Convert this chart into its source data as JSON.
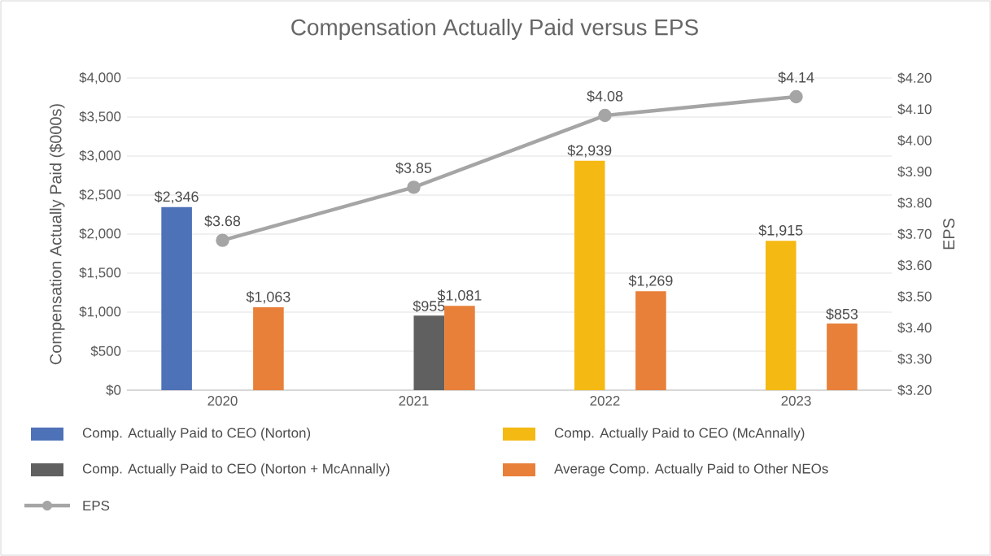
{
  "chart_data": {
    "type": "bar",
    "title": "Compensation Actually Paid versus EPS",
    "ylabel": "Compensation Actually Paid ($000s)",
    "y2label": "EPS",
    "categories": [
      "2020",
      "2021",
      "2022",
      "2023"
    ],
    "series": [
      {
        "name": "Comp. Actually Paid to CEO (Norton)",
        "color": "#4e72b8",
        "values": [
          2346,
          null,
          null,
          null
        ],
        "value_labels": [
          "$2,346",
          null,
          null,
          null
        ]
      },
      {
        "name": "Comp. Actually Paid to CEO (McAnnally)",
        "color": "#f5b914",
        "values": [
          null,
          null,
          2939,
          1915
        ],
        "value_labels": [
          null,
          null,
          "$2,939",
          "$1,915"
        ]
      },
      {
        "name": "Comp. Actually Paid to CEO (Norton + McAnnally)",
        "color": "#606060",
        "values": [
          null,
          955,
          null,
          null
        ],
        "value_labels": [
          null,
          "$955",
          null,
          null
        ]
      },
      {
        "name": "Average Comp. Actually Paid to Other NEOs",
        "color": "#e8803a",
        "values": [
          1063,
          1081,
          1269,
          853
        ],
        "value_labels": [
          "$1,063",
          "$1,081",
          "$1,269",
          "$853"
        ]
      },
      {
        "name": "EPS",
        "type": "line",
        "axis": "y2",
        "marker": "circle",
        "color": "#a5a5a5",
        "values": [
          3.68,
          3.85,
          4.08,
          4.14
        ],
        "value_labels": [
          "$3.68",
          "$3.85",
          "$4.08",
          "$4.14"
        ]
      }
    ],
    "ylim": [
      0,
      4000
    ],
    "yticks": [
      {
        "value": 0,
        "label": "$0"
      },
      {
        "value": 500,
        "label": "$500"
      },
      {
        "value": 1000,
        "label": "$1,000"
      },
      {
        "value": 1500,
        "label": "$1,500"
      },
      {
        "value": 2000,
        "label": "$2,000"
      },
      {
        "value": 2500,
        "label": "$2,500"
      },
      {
        "value": 3000,
        "label": "$3,000"
      },
      {
        "value": 3500,
        "label": "$3,500"
      },
      {
        "value": 4000,
        "label": "$4,000"
      }
    ],
    "y2lim": [
      3.2,
      4.2
    ],
    "y2ticks": [
      {
        "value": 3.2,
        "label": "$3.20"
      },
      {
        "value": 3.3,
        "label": "$3.30"
      },
      {
        "value": 3.4,
        "label": "$3.40"
      },
      {
        "value": 3.5,
        "label": "$3.50"
      },
      {
        "value": 3.6,
        "label": "$3.60"
      },
      {
        "value": 3.7,
        "label": "$3.70"
      },
      {
        "value": 3.8,
        "label": "$3.80"
      },
      {
        "value": 3.9,
        "label": "$3.90"
      },
      {
        "value": 4.0,
        "label": "$4.00"
      },
      {
        "value": 4.1,
        "label": "$4.10"
      },
      {
        "value": 4.2,
        "label": "$4.20"
      }
    ],
    "grid": "y",
    "legend": "bottom"
  }
}
